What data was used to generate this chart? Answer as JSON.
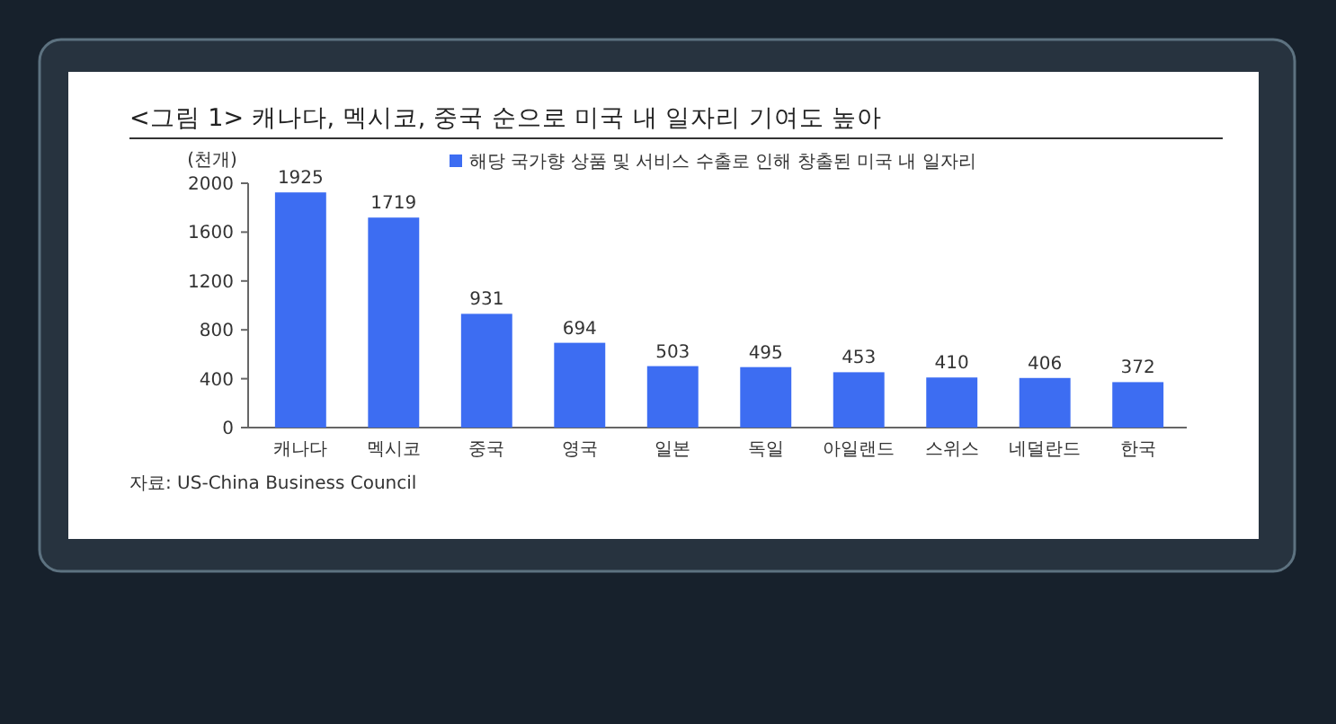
{
  "chart_data": {
    "type": "bar",
    "title": "<그림 1> 캐나다, 멕시코, 중국 순으로 미국 내 일자리 기여도 높아",
    "ylabel": "(천개)",
    "categories": [
      "캐나다",
      "멕시코",
      "중국",
      "영국",
      "일본",
      "독일",
      "아일랜드",
      "스위스",
      "네덜란드",
      "한국"
    ],
    "series": [
      {
        "name": "해당 국가향 상품 및 서비스 수출로 인해 창출된 미국 내 일자리",
        "color": "#3d6df2",
        "values": [
          1925,
          1719,
          931,
          694,
          503,
          495,
          453,
          410,
          406,
          372
        ]
      }
    ],
    "ylim": [
      0,
      2000
    ],
    "yticks": [
      0,
      400,
      800,
      1200,
      1600,
      2000
    ],
    "grid": false,
    "legend": "top right",
    "data_labels": true,
    "annotations": [
      "자료: US-China Business Council"
    ]
  }
}
